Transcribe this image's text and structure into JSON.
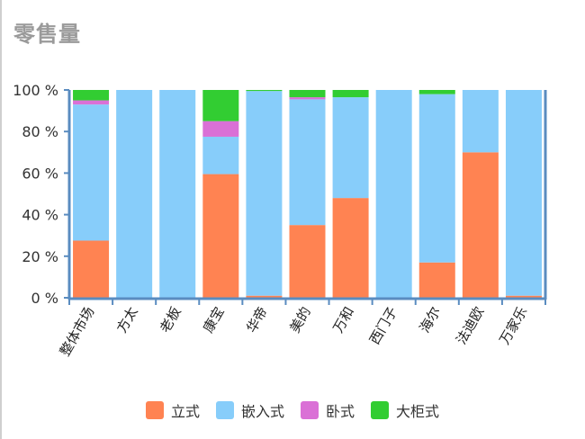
{
  "title": "零售量",
  "chart_data": {
    "type": "bar",
    "stacked": true,
    "categories": [
      "整体市场",
      "方太",
      "老板",
      "康宝",
      "华帝",
      "美的",
      "万和",
      "西门子",
      "海尔",
      "法迪欧",
      "万家乐"
    ],
    "series": [
      {
        "name": "立式",
        "color": "#ff8352",
        "values": [
          27.5,
          0,
          0,
          59.5,
          1,
          35,
          48,
          0,
          17,
          70,
          1
        ]
      },
      {
        "name": "嵌入式",
        "color": "#87cdfa",
        "values": [
          65.5,
          100,
          100,
          18,
          98.5,
          60.5,
          48.5,
          100,
          81,
          30,
          99
        ]
      },
      {
        "name": "卧式",
        "color": "#da70d6",
        "values": [
          2,
          0,
          0,
          7.5,
          0,
          1,
          0,
          0,
          0,
          0,
          0
        ]
      },
      {
        "name": "大柜式",
        "color": "#32cd32",
        "values": [
          5,
          0,
          0,
          15,
          0.5,
          3.5,
          3.5,
          0,
          2,
          0,
          0
        ]
      }
    ],
    "ylim": [
      0,
      100
    ],
    "yticks": [
      0,
      20,
      40,
      60,
      80,
      100
    ],
    "ytick_labels": [
      "0 %",
      "20 %",
      "40 %",
      "60 %",
      "80 %",
      "100 %"
    ],
    "grid": false,
    "legend_position": "bottom"
  }
}
